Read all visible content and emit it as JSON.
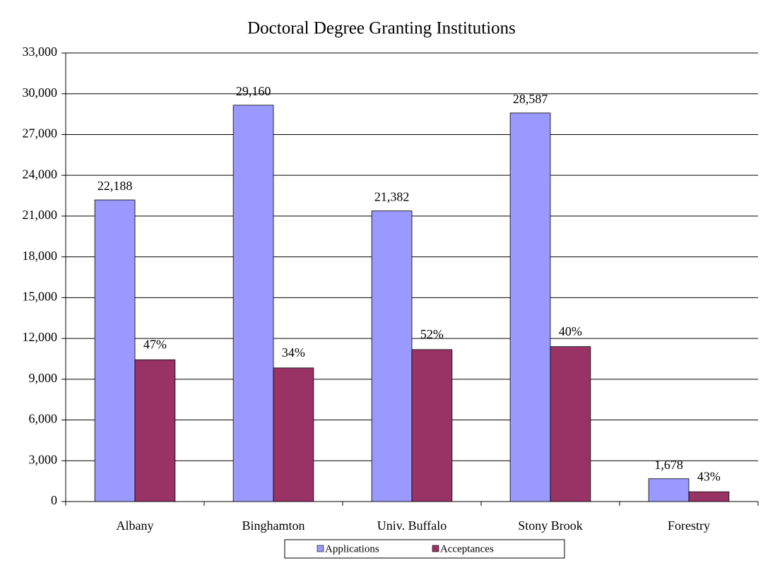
{
  "chart_data": {
    "type": "bar",
    "title": "Doctoral Degree Granting Institutions",
    "categories": [
      "Albany",
      "Binghamton",
      "Univ. Buffalo",
      "Stony Brook",
      "Forestry"
    ],
    "series": [
      {
        "name": "Applications",
        "color": "#9999ff",
        "values": [
          22188,
          29160,
          21382,
          28587,
          1678
        ],
        "value_labels": [
          "22,188",
          "29,160",
          "21,382",
          "28,587",
          "1,678"
        ]
      },
      {
        "name": "Acceptances",
        "color": "#993366",
        "values": [
          10430,
          9830,
          11180,
          11400,
          720
        ],
        "rate_labels": [
          "47%",
          "34%",
          "52%",
          "40%",
          "43%"
        ]
      }
    ],
    "ylim": [
      0,
      33000
    ],
    "yticks": [
      0,
      {
        "value": 3000,
        "label": "3,000"
      },
      {
        "value": 6000,
        "label": "6,000"
      },
      {
        "value": 9000,
        "label": "9,000"
      },
      {
        "value": 12000,
        "label": "12,000"
      },
      {
        "value": 15000,
        "label": "15,000"
      },
      {
        "value": 18000,
        "label": "18,000"
      },
      {
        "value": 21000,
        "label": "21,000"
      },
      {
        "value": 24000,
        "label": "24,000"
      },
      {
        "value": 27000,
        "label": "27,000"
      },
      {
        "value": 30000,
        "label": "30,000"
      },
      {
        "value": 33000,
        "label": "33,000"
      }
    ],
    "grid": true,
    "legend": "bottom"
  }
}
